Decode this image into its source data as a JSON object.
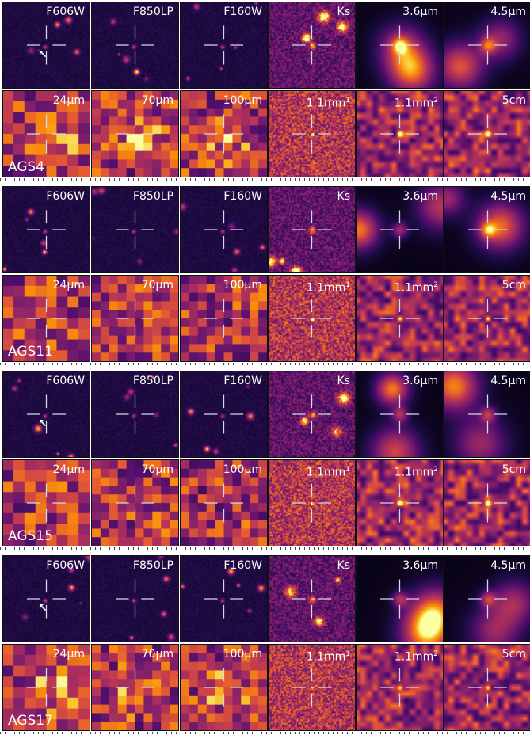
{
  "rows_per_group": [
    [
      "F606W",
      "F850LP",
      "F160W",
      "Ks",
      "3.6μm",
      "4.5μm"
    ],
    [
      "24μm",
      "70μm",
      "100μm",
      "1.1mm",
      "1.1mm",
      "5cm"
    ]
  ],
  "superscripts": [
    "",
    "",
    "",
    "1",
    "2",
    ""
  ],
  "groups": [
    {
      "source": "AGS4",
      "top_row": [
        "F606W",
        "F850LP",
        "F160W",
        "Ks",
        "3.6μm",
        "4.5μm"
      ],
      "bottom_row": [
        "24μm",
        "70μm",
        "100μm",
        "1.1mm",
        "1.1mm",
        "5cm"
      ],
      "has_arrow": true
    },
    {
      "source": "AGS11",
      "top_row": [
        "F606W",
        "F850LP",
        "F160W",
        "Ks",
        "3.6μm",
        "4.5μm"
      ],
      "bottom_row": [
        "24μm",
        "70μm",
        "100μm",
        "1.1mm",
        "1.1mm",
        "5cm"
      ],
      "has_arrow": false
    },
    {
      "source": "AGS15",
      "top_row": [
        "F606W",
        "F850LP",
        "F160W",
        "Ks",
        "3.6μm",
        "4.5μm"
      ],
      "bottom_row": [
        "24μm",
        "70μm",
        "100μm",
        "1.1mm",
        "1.1mm",
        "5cm"
      ],
      "has_arrow": true
    },
    {
      "source": "AGS17",
      "top_row": [
        "F606W",
        "F850LP",
        "F160W",
        "Ks",
        "3.6μm",
        "4.5μm"
      ],
      "bottom_row": [
        "24μm",
        "70μm",
        "100μm",
        "1.1mm",
        "1.1mm",
        "5cm"
      ],
      "has_arrow": true
    }
  ],
  "colormap": "inferno",
  "crosshair_color": "#d8d8e8",
  "arrow_color": "#ffffff"
}
